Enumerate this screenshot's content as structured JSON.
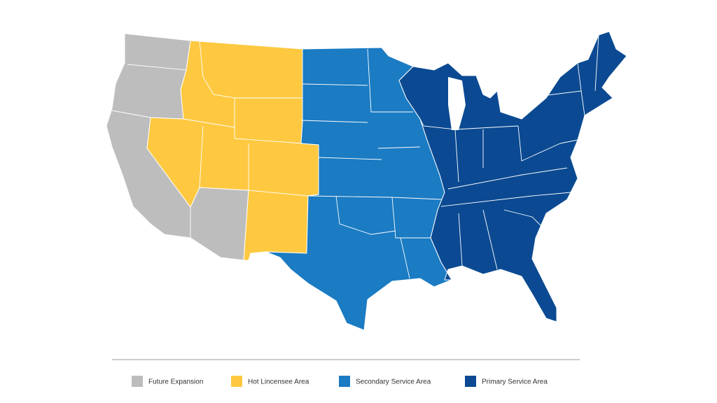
{
  "legend": {
    "items": [
      {
        "label": "Future Expansion",
        "color": "#bdbdbd"
      },
      {
        "label": "Hot Lincensee Area",
        "color": "#fec940"
      },
      {
        "label": "Secondary Service Area",
        "color": "#1b7bc3"
      },
      {
        "label": "Primary Service Area",
        "color": "#0b4a92"
      }
    ]
  }
}
